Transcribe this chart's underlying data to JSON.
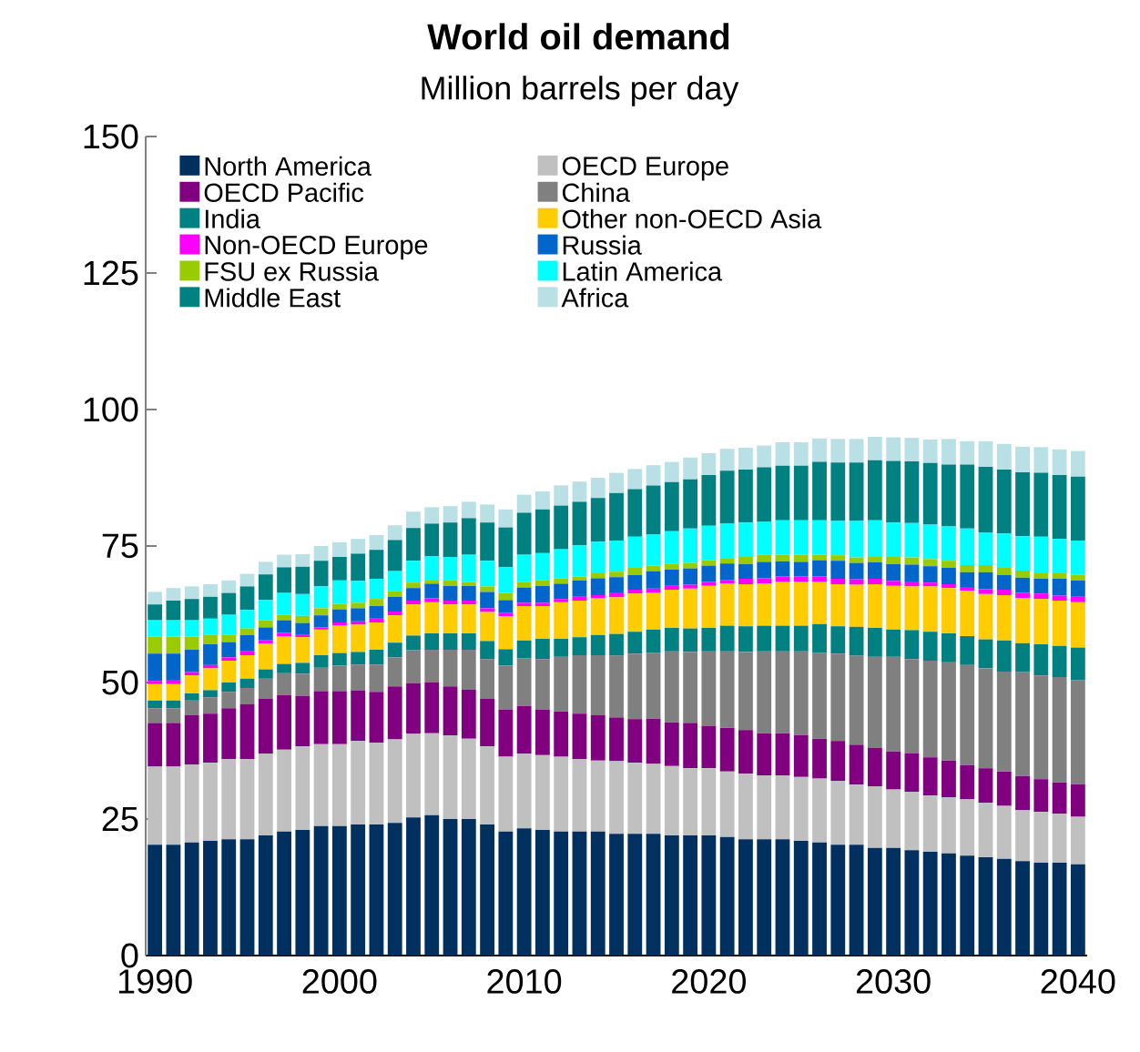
{
  "chart_data": {
    "type": "bar",
    "stacked": true,
    "title": "World oil demand",
    "subtitle": "Million barrels per day",
    "x": [
      1990,
      1991,
      1992,
      1993,
      1994,
      1995,
      1996,
      1997,
      1998,
      1999,
      2000,
      2001,
      2002,
      2003,
      2004,
      2005,
      2006,
      2007,
      2008,
      2009,
      2010,
      2011,
      2012,
      2013,
      2014,
      2015,
      2016,
      2017,
      2018,
      2019,
      2020,
      2021,
      2022,
      2023,
      2024,
      2025,
      2026,
      2027,
      2028,
      2029,
      2030,
      2031,
      2032,
      2033,
      2034,
      2035,
      2036,
      2037,
      2038,
      2039,
      2040
    ],
    "xlim": [
      1989.5,
      2040.5
    ],
    "xticks": [
      1990,
      2000,
      2010,
      2020,
      2030,
      2040
    ],
    "ylim": [
      0,
      150
    ],
    "yticks": [
      0,
      25,
      50,
      75,
      100,
      125,
      150
    ],
    "legend": "top",
    "series": [
      {
        "name": "North America",
        "color": "#00305f",
        "values": [
          20.3,
          20.3,
          20.7,
          21.0,
          21.3,
          21.3,
          22.0,
          22.7,
          23.0,
          23.7,
          23.7,
          24.0,
          24.0,
          24.3,
          25.3,
          25.7,
          25.0,
          25.0,
          24.0,
          22.7,
          23.3,
          23.0,
          22.7,
          22.7,
          22.7,
          22.3,
          22.3,
          22.3,
          22.0,
          22.0,
          22.0,
          21.7,
          21.3,
          21.3,
          21.3,
          21.0,
          20.7,
          20.3,
          20.3,
          19.7,
          19.7,
          19.3,
          19.0,
          18.7,
          18.3,
          18.0,
          17.7,
          17.3,
          17.0,
          17.0,
          16.7
        ]
      },
      {
        "name": "OECD Europe",
        "color": "#c0c0c0",
        "values": [
          14.3,
          14.3,
          14.3,
          14.3,
          14.7,
          14.7,
          15.0,
          15.0,
          15.3,
          15.0,
          15.0,
          15.3,
          15.0,
          15.3,
          15.3,
          15.0,
          15.3,
          14.7,
          14.3,
          13.7,
          13.7,
          13.7,
          13.7,
          13.3,
          13.0,
          13.3,
          13.0,
          12.8,
          12.7,
          12.3,
          12.3,
          12.0,
          12.0,
          11.7,
          11.7,
          11.7,
          11.7,
          11.7,
          11.0,
          11.3,
          10.7,
          10.7,
          10.3,
          10.3,
          10.3,
          10.0,
          9.7,
          9.3,
          9.3,
          9.0,
          8.7
        ]
      },
      {
        "name": "OECD Pacific",
        "color": "#800080",
        "values": [
          8.0,
          8.0,
          9.0,
          9.0,
          9.3,
          10.0,
          10.0,
          10.0,
          9.3,
          9.7,
          9.7,
          9.3,
          9.3,
          9.7,
          9.3,
          9.3,
          9.0,
          9.0,
          8.7,
          8.7,
          8.7,
          8.3,
          8.3,
          8.3,
          8.3,
          8.0,
          8.0,
          8.3,
          8.0,
          8.3,
          7.7,
          8.0,
          8.0,
          7.7,
          7.7,
          7.7,
          7.3,
          7.3,
          7.3,
          7.0,
          7.0,
          7.0,
          7.0,
          6.7,
          6.3,
          6.3,
          6.3,
          6.3,
          6.0,
          5.7,
          6.0
        ]
      },
      {
        "name": "China",
        "color": "#808080",
        "values": [
          2.7,
          2.7,
          2.7,
          3.0,
          3.0,
          3.0,
          3.7,
          4.0,
          4.0,
          4.3,
          4.7,
          4.7,
          5.0,
          5.3,
          6.0,
          6.0,
          6.7,
          7.3,
          7.3,
          8.0,
          8.7,
          9.3,
          10.0,
          10.7,
          11.0,
          11.3,
          12.0,
          12.0,
          13.0,
          13.0,
          13.7,
          14.0,
          14.3,
          15.0,
          15.0,
          15.3,
          15.7,
          16.0,
          16.3,
          16.7,
          17.3,
          17.3,
          17.7,
          18.0,
          18.3,
          18.3,
          18.3,
          19.0,
          19.0,
          19.3,
          19.0
        ]
      },
      {
        "name": "India",
        "color": "#008080",
        "values": [
          1.4,
          1.4,
          1.3,
          1.3,
          1.7,
          1.7,
          1.7,
          1.7,
          2.0,
          2.3,
          2.3,
          2.3,
          2.7,
          2.7,
          2.7,
          3.0,
          3.0,
          3.0,
          3.3,
          3.0,
          3.3,
          3.7,
          3.3,
          3.3,
          3.7,
          4.0,
          4.0,
          4.3,
          4.3,
          4.3,
          4.3,
          4.7,
          4.7,
          4.7,
          4.7,
          4.7,
          5.3,
          5.0,
          5.3,
          5.3,
          5.0,
          5.3,
          5.3,
          5.3,
          5.3,
          5.3,
          5.7,
          5.3,
          5.7,
          5.7,
          6.0
        ]
      },
      {
        "name": "Other non-OECD Asia",
        "color": "#ffcc00",
        "values": [
          3.0,
          3.0,
          3.3,
          4.0,
          4.0,
          4.3,
          4.7,
          5.0,
          4.7,
          4.7,
          5.0,
          5.0,
          5.0,
          5.0,
          5.7,
          5.7,
          5.3,
          5.3,
          5.3,
          6.0,
          6.3,
          6.0,
          6.7,
          6.7,
          6.7,
          6.7,
          7.0,
          6.7,
          7.0,
          7.3,
          7.7,
          7.7,
          7.7,
          7.7,
          8.0,
          8.0,
          7.7,
          7.7,
          7.7,
          8.0,
          8.0,
          8.0,
          8.3,
          8.3,
          8.3,
          8.3,
          8.3,
          8.3,
          8.3,
          8.3,
          8.3
        ]
      },
      {
        "name": "Non-OECD Europe",
        "color": "#ff00ff",
        "values": [
          0.6,
          0.8,
          0.6,
          0.6,
          0.6,
          0.7,
          0.7,
          0.7,
          0.4,
          0.4,
          0.6,
          0.6,
          0.7,
          0.7,
          0.7,
          0.7,
          0.7,
          0.7,
          0.7,
          0.7,
          0.6,
          0.6,
          0.6,
          0.7,
          0.6,
          0.9,
          0.7,
          0.8,
          0.7,
          0.7,
          0.7,
          0.7,
          1.0,
          1.0,
          1.0,
          1.0,
          1.0,
          1.0,
          1.0,
          1.0,
          0.9,
          0.9,
          0.7,
          0.7,
          0.7,
          0.9,
          1.0,
          0.9,
          1.0,
          0.9,
          1.0
        ]
      },
      {
        "name": "Russia",
        "color": "#0066cc",
        "values": [
          5.0,
          4.8,
          4.1,
          3.8,
          2.8,
          3.0,
          2.3,
          2.3,
          2.2,
          2.2,
          2.4,
          2.4,
          2.3,
          2.7,
          2.3,
          2.7,
          2.7,
          2.7,
          3.0,
          2.3,
          2.8,
          3.1,
          2.8,
          3.0,
          3.1,
          2.8,
          2.7,
          3.2,
          3.0,
          3.0,
          3.0,
          3.0,
          2.7,
          3.0,
          2.8,
          2.7,
          3.0,
          3.3,
          3.0,
          3.0,
          3.1,
          3.1,
          3.0,
          3.0,
          2.7,
          3.1,
          2.7,
          2.8,
          2.7,
          3.1,
          3.0
        ]
      },
      {
        "name": "FSU ex Russia",
        "color": "#99cc00",
        "values": [
          3.1,
          3.1,
          2.4,
          1.7,
          1.3,
          1.2,
          1.3,
          1.0,
          1.3,
          1.3,
          1.0,
          1.0,
          1.3,
          1.0,
          1.0,
          0.7,
          1.0,
          0.7,
          1.0,
          1.3,
          1.0,
          1.0,
          1.0,
          0.7,
          0.9,
          1.0,
          1.3,
          1.0,
          1.0,
          1.0,
          1.0,
          1.0,
          1.3,
          1.3,
          1.2,
          1.3,
          1.0,
          1.0,
          1.0,
          1.0,
          1.3,
          1.3,
          1.3,
          1.3,
          1.3,
          1.3,
          1.3,
          1.3,
          1.0,
          1.0,
          1.0
        ]
      },
      {
        "name": "Latin America",
        "color": "#00ffff",
        "values": [
          3.0,
          3.0,
          3.0,
          3.0,
          3.7,
          3.4,
          3.7,
          4.0,
          4.0,
          4.0,
          4.3,
          4.0,
          3.7,
          3.7,
          4.0,
          4.3,
          4.3,
          5.0,
          4.7,
          4.7,
          5.0,
          5.0,
          5.3,
          5.7,
          5.8,
          5.7,
          5.7,
          5.7,
          6.0,
          6.3,
          6.3,
          6.3,
          6.3,
          6.0,
          6.3,
          6.3,
          6.3,
          6.3,
          6.7,
          6.7,
          6.3,
          6.3,
          6.3,
          6.3,
          6.7,
          6.0,
          6.3,
          6.3,
          6.7,
          6.3,
          6.3
        ]
      },
      {
        "name": "Middle East",
        "color": "#008080",
        "values": [
          2.9,
          3.6,
          3.9,
          4.0,
          4.0,
          4.3,
          4.7,
          4.7,
          5.0,
          4.7,
          4.3,
          5.0,
          5.3,
          5.7,
          6.0,
          6.0,
          6.3,
          6.7,
          7.0,
          7.3,
          7.7,
          8.0,
          8.0,
          8.0,
          8.0,
          8.7,
          8.7,
          9.0,
          9.0,
          9.0,
          9.3,
          9.7,
          9.7,
          10.0,
          10.0,
          10.0,
          10.7,
          10.7,
          10.7,
          11.0,
          11.3,
          11.3,
          11.3,
          11.3,
          11.7,
          12.0,
          11.7,
          11.7,
          11.7,
          11.7,
          11.7
        ]
      },
      {
        "name": "Africa",
        "color": "#b9e0e4",
        "values": [
          2.3,
          2.3,
          2.3,
          2.3,
          2.3,
          2.3,
          2.3,
          2.3,
          2.3,
          2.7,
          2.7,
          2.7,
          2.7,
          2.7,
          3.0,
          3.0,
          3.0,
          3.0,
          3.3,
          3.3,
          3.3,
          3.3,
          3.7,
          3.7,
          3.7,
          3.7,
          3.7,
          3.7,
          3.7,
          4.0,
          4.0,
          4.0,
          4.0,
          4.0,
          4.3,
          4.3,
          4.3,
          4.3,
          4.3,
          4.3,
          4.3,
          4.3,
          4.3,
          4.7,
          4.3,
          4.7,
          4.7,
          4.7,
          4.7,
          4.7,
          4.7
        ]
      }
    ]
  }
}
